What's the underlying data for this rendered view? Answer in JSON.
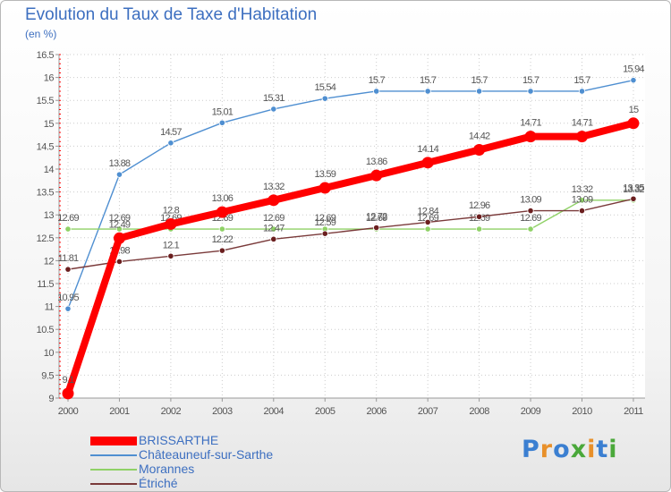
{
  "chart_data": {
    "type": "line",
    "title": "Evolution du Taux de Taxe d'Habitation",
    "unit_label": "(en %)",
    "xlabel": "",
    "ylabel": "",
    "ylim": [
      9,
      16.5
    ],
    "y_ticks": [
      "9",
      "9.5",
      "10",
      "10.5",
      "11",
      "11.5",
      "12",
      "12.5",
      "13",
      "13.5",
      "14",
      "14.5",
      "15",
      "15.5",
      "16",
      "16.5"
    ],
    "x": [
      "2000",
      "2001",
      "2002",
      "2003",
      "2004",
      "2005",
      "2006",
      "2007",
      "2008",
      "2009",
      "2010",
      "2011"
    ],
    "series": [
      {
        "name": "Châteauneuf-sur-Sarthe",
        "color": "#4f8fd1",
        "marker": "#4f8fd1",
        "values": [
          10.95,
          13.88,
          14.57,
          15.01,
          15.31,
          15.54,
          15.7,
          15.7,
          15.7,
          15.7,
          15.7,
          15.94
        ],
        "labels": [
          "10.95",
          "13.88",
          "14.57",
          "15.01",
          "15.31",
          "15.54",
          "15.7",
          "15.7",
          "15.7",
          "15.7",
          "15.7",
          "15.94"
        ]
      },
      {
        "name": "Morannes",
        "color": "#8fd166",
        "marker": "#8fd166",
        "values": [
          12.69,
          12.69,
          12.69,
          12.69,
          12.69,
          12.69,
          12.69,
          12.69,
          12.69,
          12.69,
          13.32,
          13.32
        ],
        "labels": [
          "12.69",
          "12.69",
          "12.69",
          "12.69",
          "12.69",
          "12.69",
          "12.69",
          "12.69",
          "12.69",
          "12.69",
          "13.32",
          "13.32"
        ]
      },
      {
        "name": "Étriché",
        "color": "#7a3a3a",
        "marker": "#6b1f1f",
        "values": [
          11.81,
          11.98,
          12.1,
          12.22,
          12.47,
          12.59,
          12.72,
          12.84,
          12.96,
          13.09,
          13.09,
          13.35
        ],
        "labels": [
          "11.81",
          "11.98",
          "12.1",
          "12.22",
          "12.47",
          "12.59",
          "12.72",
          "12.84",
          "12.96",
          "13.09",
          "13.09",
          "13.35"
        ]
      },
      {
        "name": "BRISSARTHE",
        "color": "#ff0000",
        "marker": "#ff0000",
        "values": [
          9.1,
          12.49,
          12.8,
          13.06,
          13.32,
          13.59,
          13.86,
          14.14,
          14.42,
          14.71,
          14.71,
          15
        ],
        "labels": [
          "9.1",
          "12.49",
          "12.8",
          "13.06",
          "13.32",
          "13.59",
          "13.86",
          "14.14",
          "14.42",
          "14.71",
          "14.71",
          "15"
        ]
      }
    ],
    "legend": {
      "placement": "bottom-left",
      "items": [
        {
          "name": "BRISSARTHE",
          "color": "#ff0000"
        },
        {
          "name": "Châteauneuf-sur-Sarthe",
          "color": "#4f8fd1"
        },
        {
          "name": "Morannes",
          "color": "#8fd166"
        },
        {
          "name": "Étriché",
          "color": "#7a3a3a"
        }
      ]
    }
  },
  "logo": {
    "letters": [
      "P",
      "r",
      "o",
      "x",
      "i",
      "t",
      "i"
    ],
    "colors": [
      "#3b7fd1",
      "#e8902a",
      "#3b7fd1",
      "#4aa83a",
      "#e8902a",
      "#3b7fd1",
      "#4aa83a"
    ]
  }
}
